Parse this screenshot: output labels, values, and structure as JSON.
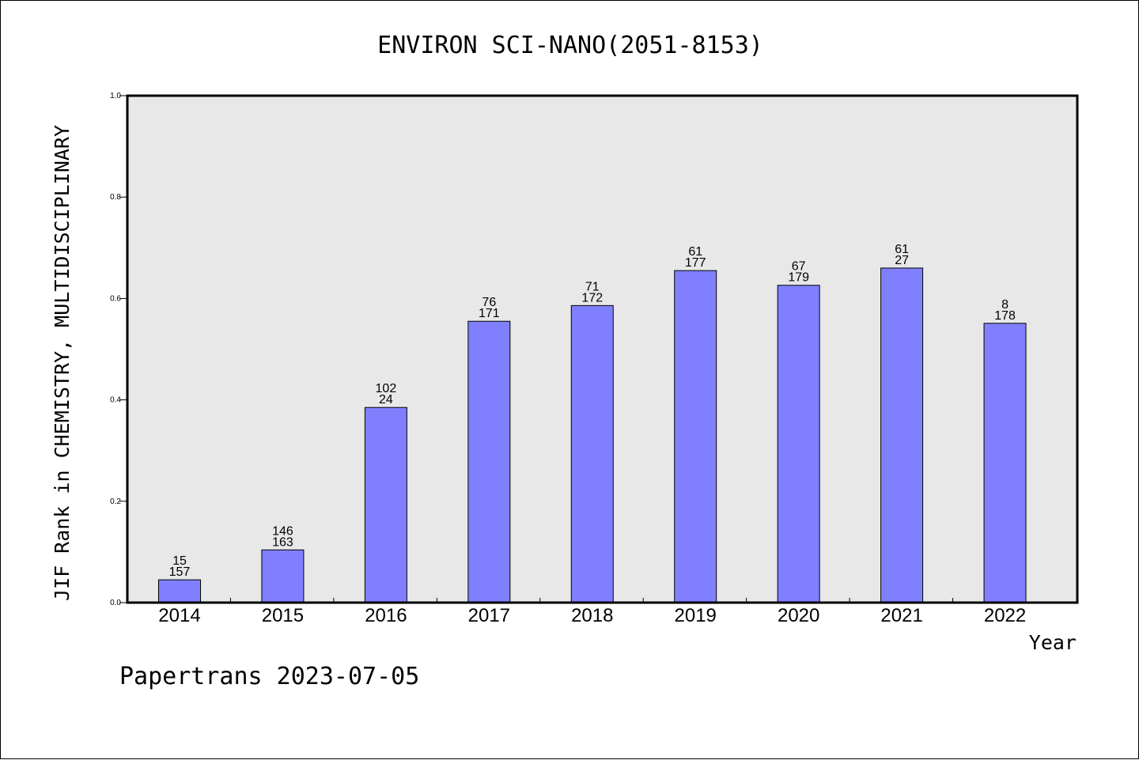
{
  "chart_data": {
    "type": "bar",
    "title": "ENVIRON SCI-NANO(2051-8153)",
    "xlabel": "Year",
    "ylabel": "JIF Rank in CHEMISTRY, MULTIDISCIPLINARY",
    "ylim": [
      0,
      1.0
    ],
    "yticks": [
      "0.0",
      "0.2",
      "0.4",
      "0.6",
      "0.8",
      "1.0"
    ],
    "ytick_values": [
      0,
      0.2,
      0.4,
      0.6,
      0.8,
      1.0
    ],
    "categories": [
      "2014",
      "2015",
      "2016",
      "2017",
      "2018",
      "2019",
      "2020",
      "2021",
      "2022"
    ],
    "values": [
      0.045,
      0.104,
      0.385,
      0.555,
      0.586,
      0.655,
      0.626,
      0.66,
      0.551
    ],
    "labels_top": [
      "15",
      "146",
      "102",
      "76",
      "71",
      "61",
      "67",
      "61",
      "8"
    ],
    "labels_bottom": [
      "157",
      "163",
      "24",
      "171",
      "172",
      "177",
      "179",
      "27",
      "178"
    ],
    "bar_color": "#8080ff",
    "plot_background": "#e8e8e8",
    "grid": false,
    "legend": "none"
  },
  "footer": "Papertrans 2023-07-05"
}
